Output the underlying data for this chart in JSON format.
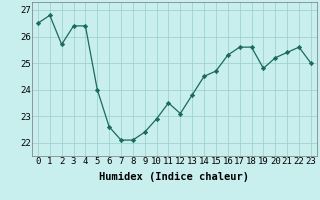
{
  "x": [
    0,
    1,
    2,
    3,
    4,
    5,
    6,
    7,
    8,
    9,
    10,
    11,
    12,
    13,
    14,
    15,
    16,
    17,
    18,
    19,
    20,
    21,
    22,
    23
  ],
  "y": [
    26.5,
    26.8,
    25.7,
    26.4,
    26.4,
    24.0,
    22.6,
    22.1,
    22.1,
    22.4,
    22.9,
    23.5,
    23.1,
    23.8,
    24.5,
    24.7,
    25.3,
    25.6,
    25.6,
    24.8,
    25.2,
    25.4,
    25.6,
    25.0
  ],
  "xlabel": "Humidex (Indice chaleur)",
  "ylim": [
    21.5,
    27.3
  ],
  "xlim": [
    -0.5,
    23.5
  ],
  "yticks": [
    22,
    23,
    24,
    25,
    26,
    27
  ],
  "xtick_labels": [
    "0",
    "1",
    "2",
    "3",
    "4",
    "5",
    "6",
    "7",
    "8",
    "9",
    "10",
    "11",
    "12",
    "13",
    "14",
    "15",
    "16",
    "17",
    "18",
    "19",
    "20",
    "21",
    "22",
    "23"
  ],
  "bg_color": "#c8eeee",
  "line_color": "#1a6b5a",
  "marker_color": "#1a6b5a",
  "grid_color": "#99cccc",
  "label_fontsize": 7.5,
  "tick_fontsize": 6.5
}
